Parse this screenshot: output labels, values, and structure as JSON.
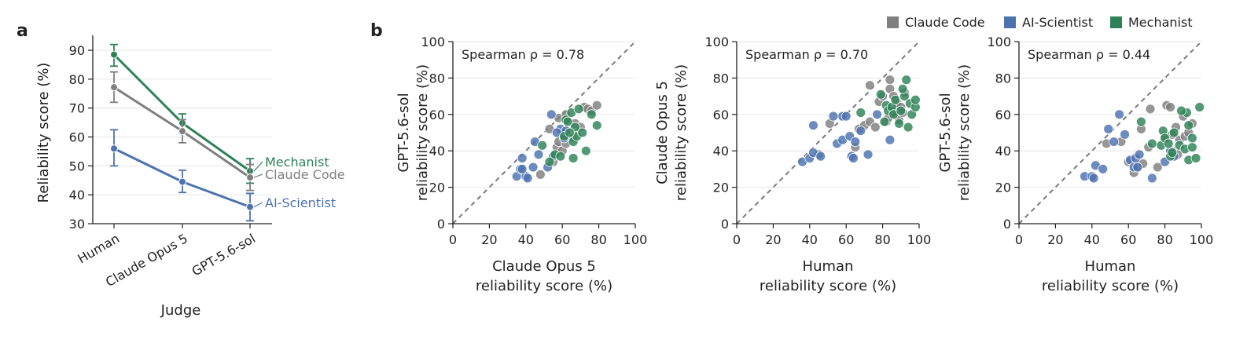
{
  "panels": {
    "a": "a",
    "b": "b"
  },
  "colors": {
    "Claude Code": "#7f7f7f",
    "AI-Scientist": "#4c72b0",
    "Mechanist": "#2e8257"
  },
  "legend": {
    "entries": [
      "Claude Code",
      "AI-Scientist",
      "Mechanist"
    ]
  },
  "chart_data": [
    {
      "type": "line",
      "panel": "a",
      "categories": [
        "Human",
        "Claude Opus 5",
        "GPT-5.6-sol"
      ],
      "xlabel": "Judge",
      "ylabel": "Reliability score (%)",
      "ylim": [
        30,
        93
      ],
      "yticks": [
        30,
        40,
        50,
        60,
        70,
        80,
        90
      ],
      "grid": "y",
      "series": [
        {
          "name": "Mechanist",
          "values": [
            88.5,
            64.8,
            48.2
          ],
          "err_low": [
            84.5,
            61.8,
            44.0
          ],
          "err_high": [
            92.0,
            68.0,
            52.5
          ]
        },
        {
          "name": "Claude Code",
          "values": [
            77.2,
            62.0,
            46.0
          ],
          "err_low": [
            72.0,
            58.0,
            41.5
          ],
          "err_high": [
            82.5,
            66.0,
            50.5
          ]
        },
        {
          "name": "AI-Scientist",
          "values": [
            56.0,
            44.5,
            35.8
          ],
          "err_low": [
            50.0,
            40.8,
            31.0
          ],
          "err_high": [
            62.5,
            48.5,
            40.5
          ]
        }
      ]
    },
    {
      "type": "scatter",
      "panel": "b",
      "xlabel": [
        "Claude Opus 5",
        "reliability score (%)"
      ],
      "ylabel": [
        "GPT-5.6-sol",
        "reliability score (%)"
      ],
      "xlim": [
        0,
        100
      ],
      "ylim": [
        0,
        100
      ],
      "ticks": [
        0,
        20,
        40,
        60,
        80,
        100
      ],
      "annotation": "Spearman ρ = 0.78",
      "reference_line": "y = x",
      "series": [
        {
          "name": "Claude Code",
          "points": [
            [
              53,
              52
            ],
            [
              55,
              34
            ],
            [
              57,
              42
            ],
            [
              58,
              45
            ],
            [
              60,
              40
            ],
            [
              62,
              44
            ],
            [
              63,
              48
            ],
            [
              66,
              47
            ],
            [
              67,
              55
            ],
            [
              70,
              53
            ],
            [
              72,
              64
            ],
            [
              74,
              63
            ],
            [
              76,
              62
            ],
            [
              79,
              65
            ],
            [
              48,
              27
            ],
            [
              58,
              58
            ],
            [
              62,
              60
            ]
          ]
        },
        {
          "name": "AI-Scientist",
          "points": [
            [
              35,
              26
            ],
            [
              37,
              30
            ],
            [
              38,
              36
            ],
            [
              40,
              26
            ],
            [
              41,
              25
            ],
            [
              44,
              31
            ],
            [
              45,
              45
            ],
            [
              47,
              38
            ],
            [
              52,
              31
            ],
            [
              54,
              60
            ],
            [
              55,
              37
            ],
            [
              59,
              52
            ],
            [
              61,
              47
            ],
            [
              62,
              51
            ],
            [
              57,
              50
            ],
            [
              38,
              30
            ]
          ]
        },
        {
          "name": "Mechanist",
          "points": [
            [
              49,
              43
            ],
            [
              53,
              34
            ],
            [
              56,
              38
            ],
            [
              59,
              37
            ],
            [
              61,
              48
            ],
            [
              62,
              57
            ],
            [
              63,
              56
            ],
            [
              65,
              61
            ],
            [
              66,
              45
            ],
            [
              67,
              53
            ],
            [
              68,
              48
            ],
            [
              69,
              63
            ],
            [
              71,
              50
            ],
            [
              73,
              40
            ],
            [
              76,
              60
            ],
            [
              79,
              54
            ],
            [
              64,
              50
            ],
            [
              66,
              36
            ]
          ]
        }
      ]
    },
    {
      "type": "scatter",
      "panel": "b",
      "xlabel": [
        "Human",
        "reliability score (%)"
      ],
      "ylabel": [
        "Claude Opus 5",
        "reliability score (%)"
      ],
      "xlim": [
        0,
        100
      ],
      "ylim": [
        0,
        100
      ],
      "ticks": [
        0,
        20,
        40,
        60,
        80,
        100
      ],
      "annotation": "Spearman ρ = 0.70",
      "reference_line": "y = x",
      "series": [
        {
          "name": "Claude Code",
          "points": [
            [
              45,
              38
            ],
            [
              51,
              55
            ],
            [
              65,
              42
            ],
            [
              67,
              52
            ],
            [
              70,
              54
            ],
            [
              73,
              56
            ],
            [
              73,
              76
            ],
            [
              76,
              53
            ],
            [
              78,
              67
            ],
            [
              80,
              70
            ],
            [
              82,
              56
            ],
            [
              83,
              58
            ],
            [
              84,
              79
            ],
            [
              84,
              74
            ],
            [
              86,
              62
            ],
            [
              86,
              70
            ],
            [
              87,
              60
            ],
            [
              88,
              66
            ],
            [
              89,
              57
            ],
            [
              90,
              64
            ],
            [
              91,
              61
            ],
            [
              92,
              72
            ]
          ]
        },
        {
          "name": "AI-Scientist",
          "points": [
            [
              36,
              34
            ],
            [
              40,
              36
            ],
            [
              42,
              39
            ],
            [
              42,
              54
            ],
            [
              46,
              37
            ],
            [
              55,
              44
            ],
            [
              58,
              46
            ],
            [
              58,
              59
            ],
            [
              60,
              59
            ],
            [
              62,
              48
            ],
            [
              63,
              37
            ],
            [
              64,
              36
            ],
            [
              65,
              45
            ],
            [
              68,
              51
            ],
            [
              72,
              38
            ],
            [
              77,
              60
            ],
            [
              84,
              46
            ],
            [
              53,
              59
            ]
          ]
        },
        {
          "name": "Mechanist",
          "points": [
            [
              68,
              61
            ],
            [
              79,
              71
            ],
            [
              81,
              56
            ],
            [
              82,
              65
            ],
            [
              83,
              62
            ],
            [
              85,
              64
            ],
            [
              86,
              60
            ],
            [
              87,
              68
            ],
            [
              89,
              55
            ],
            [
              90,
              62
            ],
            [
              92,
              70
            ],
            [
              93,
              79
            ],
            [
              94,
              53
            ],
            [
              95,
              66
            ],
            [
              96,
              60
            ],
            [
              98,
              64
            ],
            [
              98,
              68
            ],
            [
              91,
              74
            ]
          ]
        }
      ]
    },
    {
      "type": "scatter",
      "panel": "b",
      "xlabel": [
        "Human",
        "reliability score (%)"
      ],
      "ylabel": [
        "GPT-5.6-sol",
        "reliability score (%)"
      ],
      "xlim": [
        0,
        100
      ],
      "ylim": [
        0,
        100
      ],
      "ticks": [
        0,
        20,
        40,
        60,
        80,
        100
      ],
      "annotation": "Spearman ρ = 0.44",
      "reference_line": "y = x",
      "series": [
        {
          "name": "Claude Code",
          "points": [
            [
              48,
              44
            ],
            [
              56,
              45
            ],
            [
              60,
              34
            ],
            [
              63,
              28
            ],
            [
              65,
              31
            ],
            [
              67,
              52
            ],
            [
              68,
              33
            ],
            [
              71,
              42
            ],
            [
              72,
              63
            ],
            [
              76,
              31
            ],
            [
              80,
              48
            ],
            [
              81,
              65
            ],
            [
              83,
              64
            ],
            [
              84,
              40
            ],
            [
              86,
              53
            ],
            [
              88,
              46
            ],
            [
              90,
              59
            ],
            [
              91,
              48
            ],
            [
              93,
              50
            ],
            [
              95,
              55
            ],
            [
              87,
              38
            ],
            [
              84,
              49
            ]
          ]
        },
        {
          "name": "AI-Scientist",
          "points": [
            [
              36,
              26
            ],
            [
              40,
              26
            ],
            [
              41,
              25
            ],
            [
              42,
              32
            ],
            [
              46,
              30
            ],
            [
              49,
              52
            ],
            [
              52,
              45
            ],
            [
              55,
              60
            ],
            [
              58,
              49
            ],
            [
              61,
              35
            ],
            [
              63,
              31
            ],
            [
              64,
              36
            ],
            [
              65,
              31
            ],
            [
              66,
              38
            ],
            [
              73,
              25
            ],
            [
              80,
              34
            ],
            [
              83,
              40
            ],
            [
              85,
              37
            ]
          ]
        },
        {
          "name": "Mechanist",
          "points": [
            [
              67,
              56
            ],
            [
              73,
              44
            ],
            [
              78,
              43
            ],
            [
              79,
              51
            ],
            [
              80,
              47
            ],
            [
              82,
              44
            ],
            [
              83,
              37
            ],
            [
              84,
              39
            ],
            [
              85,
              50
            ],
            [
              88,
              43
            ],
            [
              91,
              41
            ],
            [
              92,
              61
            ],
            [
              93,
              35
            ],
            [
              93,
              54
            ],
            [
              95,
              42
            ],
            [
              95,
              47
            ],
            [
              97,
              36
            ],
            [
              99,
              64
            ],
            [
              89,
              62
            ]
          ]
        }
      ]
    }
  ]
}
